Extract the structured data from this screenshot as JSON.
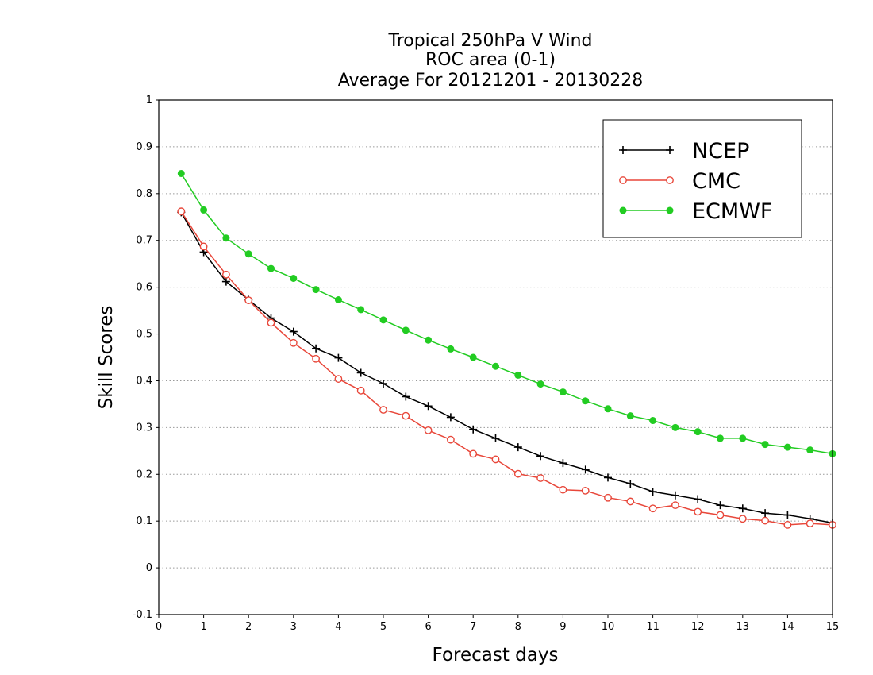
{
  "chart_data": {
    "type": "line",
    "title_lines": [
      "Tropical 250hPa V Wind",
      "ROC area (0-1)",
      "Average For 20121201 - 20130228"
    ],
    "xlabel": "Forecast days",
    "ylabel": "Skill Scores",
    "xlim": [
      0,
      15
    ],
    "ylim": [
      -0.1,
      1
    ],
    "xticks": [
      0,
      1,
      2,
      3,
      4,
      5,
      6,
      7,
      8,
      9,
      10,
      11,
      12,
      13,
      14,
      15
    ],
    "yticks": [
      -0.1,
      0,
      0.1,
      0.2,
      0.3,
      0.4,
      0.5,
      0.6,
      0.7,
      0.8,
      0.9,
      1
    ],
    "ytick_labels": [
      "-0.1",
      "0",
      "0.1",
      "0.2",
      "0.3",
      "0.4",
      "0.5",
      "0.6",
      "0.7",
      "0.8",
      "0.9",
      "1"
    ],
    "grid": "horizontal dotted",
    "legend_position": "top-right",
    "x": [
      0.5,
      1,
      1.5,
      2,
      2.5,
      3,
      3.5,
      4,
      4.5,
      5,
      5.5,
      6,
      6.5,
      7,
      7.5,
      8,
      8.5,
      9,
      9.5,
      10,
      10.5,
      11,
      11.5,
      12,
      12.5,
      13,
      13.5,
      14,
      14.5,
      15
    ],
    "series": [
      {
        "name": "NCEP",
        "color": "#000000",
        "marker": "plus",
        "values": [
          0.76,
          0.675,
          0.612,
          0.573,
          0.534,
          0.505,
          0.469,
          0.449,
          0.417,
          0.394,
          0.366,
          0.346,
          0.322,
          0.296,
          0.277,
          0.258,
          0.239,
          0.224,
          0.21,
          0.193,
          0.18,
          0.163,
          0.155,
          0.147,
          0.134,
          0.127,
          0.117,
          0.113,
          0.105,
          0.096
        ]
      },
      {
        "name": "CMC",
        "color": "#e8473a",
        "marker": "circle-open",
        "values": [
          0.762,
          0.687,
          0.627,
          0.572,
          0.524,
          0.481,
          0.447,
          0.404,
          0.379,
          0.338,
          0.325,
          0.294,
          0.274,
          0.244,
          0.232,
          0.201,
          0.192,
          0.167,
          0.165,
          0.15,
          0.142,
          0.127,
          0.134,
          0.12,
          0.113,
          0.105,
          0.101,
          0.092,
          0.095,
          0.092
        ]
      },
      {
        "name": "ECMWF",
        "color": "#22cc22",
        "marker": "circle-filled",
        "values": [
          0.843,
          0.765,
          0.705,
          0.671,
          0.64,
          0.619,
          0.595,
          0.573,
          0.552,
          0.53,
          0.508,
          0.487,
          0.468,
          0.45,
          0.431,
          0.412,
          0.393,
          0.376,
          0.357,
          0.34,
          0.325,
          0.315,
          0.3,
          0.291,
          0.277,
          0.277,
          0.264,
          0.258,
          0.252,
          0.244
        ]
      }
    ]
  }
}
